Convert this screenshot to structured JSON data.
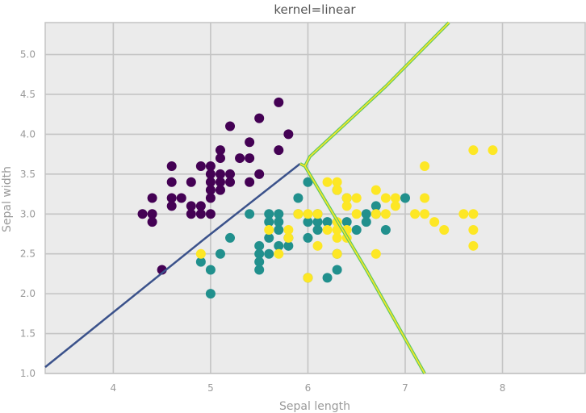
{
  "chart_data": {
    "type": "scatter",
    "title": "kernel=linear",
    "xlabel": "Sepal length",
    "ylabel": "Sepal width",
    "xlim": [
      3.3,
      8.85
    ],
    "ylim": [
      1.0,
      5.4
    ],
    "xticks": [
      4,
      5,
      6,
      7,
      8
    ],
    "yticks": [
      1.0,
      1.5,
      2.0,
      2.5,
      3.0,
      3.5,
      4.0,
      4.5,
      5.0
    ],
    "grid": true,
    "colors": {
      "background": "#ebebeb",
      "grid": "#c4c4c4",
      "class0": "#440154",
      "class1": "#21908d",
      "class2": "#fde725",
      "boundary01": "#3b528b",
      "boundary_outer": "#5ec962",
      "boundary_inner": "#fde725"
    },
    "series": [
      {
        "points": [
          [
            4.3,
            3.0
          ],
          [
            4.4,
            3.0
          ],
          [
            4.4,
            3.2
          ],
          [
            4.4,
            2.9
          ],
          [
            4.5,
            2.3
          ],
          [
            4.6,
            3.6
          ],
          [
            4.6,
            3.4
          ],
          [
            4.6,
            3.2
          ],
          [
            4.6,
            3.1
          ],
          [
            4.7,
            3.2
          ],
          [
            4.8,
            3.4
          ],
          [
            4.8,
            3.1
          ],
          [
            4.8,
            3.0
          ],
          [
            4.9,
            3.1
          ],
          [
            4.9,
            3.0
          ],
          [
            4.9,
            3.6
          ],
          [
            5.0,
            3.6
          ],
          [
            5.0,
            3.5
          ],
          [
            5.0,
            3.4
          ],
          [
            5.0,
            3.3
          ],
          [
            5.0,
            3.2
          ],
          [
            5.0,
            3.0
          ],
          [
            5.1,
            3.8
          ],
          [
            5.1,
            3.7
          ],
          [
            5.1,
            3.5
          ],
          [
            5.1,
            3.4
          ],
          [
            5.1,
            3.3
          ],
          [
            5.2,
            4.1
          ],
          [
            5.2,
            3.5
          ],
          [
            5.2,
            3.4
          ],
          [
            5.3,
            3.7
          ],
          [
            5.4,
            3.9
          ],
          [
            5.4,
            3.7
          ],
          [
            5.4,
            3.4
          ],
          [
            5.5,
            4.2
          ],
          [
            5.5,
            3.5
          ],
          [
            5.7,
            4.4
          ],
          [
            5.7,
            3.8
          ],
          [
            5.8,
            4.0
          ]
        ]
      },
      {
        "points": [
          [
            4.9,
            2.4
          ],
          [
            5.0,
            2.3
          ],
          [
            5.0,
            2.0
          ],
          [
            5.1,
            2.5
          ],
          [
            5.2,
            2.7
          ],
          [
            5.4,
            3.0
          ],
          [
            5.5,
            2.6
          ],
          [
            5.5,
            2.5
          ],
          [
            5.5,
            2.4
          ],
          [
            5.5,
            2.3
          ],
          [
            5.6,
            3.0
          ],
          [
            5.6,
            2.9
          ],
          [
            5.6,
            2.7
          ],
          [
            5.6,
            2.5
          ],
          [
            5.7,
            3.0
          ],
          [
            5.7,
            2.9
          ],
          [
            5.7,
            2.8
          ],
          [
            5.7,
            2.6
          ],
          [
            5.8,
            2.7
          ],
          [
            5.8,
            2.6
          ],
          [
            5.9,
            3.2
          ],
          [
            5.9,
            3.0
          ],
          [
            6.0,
            3.4
          ],
          [
            6.0,
            2.9
          ],
          [
            6.0,
            2.7
          ],
          [
            6.0,
            2.2
          ],
          [
            6.1,
            3.0
          ],
          [
            6.1,
            2.9
          ],
          [
            6.1,
            2.8
          ],
          [
            6.2,
            2.9
          ],
          [
            6.2,
            2.2
          ],
          [
            6.3,
            3.3
          ],
          [
            6.3,
            2.5
          ],
          [
            6.3,
            2.3
          ],
          [
            6.4,
            3.2
          ],
          [
            6.4,
            2.9
          ],
          [
            6.5,
            2.8
          ],
          [
            6.6,
            3.0
          ],
          [
            6.6,
            2.9
          ],
          [
            6.7,
            3.1
          ],
          [
            6.7,
            3.0
          ],
          [
            6.8,
            2.8
          ],
          [
            7.0,
            3.2
          ]
        ]
      },
      {
        "points": [
          [
            4.9,
            2.5
          ],
          [
            5.6,
            2.8
          ],
          [
            5.7,
            2.5
          ],
          [
            5.8,
            2.8
          ],
          [
            5.8,
            2.7
          ],
          [
            5.9,
            3.0
          ],
          [
            6.0,
            3.0
          ],
          [
            6.0,
            2.2
          ],
          [
            6.1,
            3.0
          ],
          [
            6.1,
            2.6
          ],
          [
            6.2,
            3.4
          ],
          [
            6.2,
            2.8
          ],
          [
            6.3,
            3.4
          ],
          [
            6.3,
            3.3
          ],
          [
            6.3,
            2.9
          ],
          [
            6.3,
            2.8
          ],
          [
            6.3,
            2.7
          ],
          [
            6.3,
            2.5
          ],
          [
            6.4,
            3.2
          ],
          [
            6.4,
            3.1
          ],
          [
            6.4,
            2.8
          ],
          [
            6.4,
            2.7
          ],
          [
            6.5,
            3.2
          ],
          [
            6.5,
            3.0
          ],
          [
            6.7,
            3.3
          ],
          [
            6.7,
            3.0
          ],
          [
            6.7,
            2.5
          ],
          [
            6.8,
            3.2
          ],
          [
            6.8,
            3.0
          ],
          [
            6.9,
            3.2
          ],
          [
            6.9,
            3.1
          ],
          [
            7.1,
            3.0
          ],
          [
            7.2,
            3.6
          ],
          [
            7.2,
            3.2
          ],
          [
            7.2,
            3.0
          ],
          [
            7.3,
            2.9
          ],
          [
            7.4,
            2.8
          ],
          [
            7.6,
            3.0
          ],
          [
            7.7,
            3.8
          ],
          [
            7.7,
            3.0
          ],
          [
            7.7,
            2.8
          ],
          [
            7.7,
            2.6
          ],
          [
            7.9,
            3.8
          ]
        ]
      }
    ],
    "decision_boundaries": [
      {
        "between": [
          "class0",
          "class1"
        ],
        "points": [
          [
            3.3,
            1.08
          ],
          [
            4.95,
            2.7
          ],
          [
            5.92,
            3.63
          ]
        ]
      },
      {
        "between": [
          "class0",
          "class1/class2"
        ],
        "points": [
          [
            5.92,
            3.63
          ],
          [
            5.97,
            3.6
          ],
          [
            6.02,
            3.72
          ],
          [
            6.8,
            4.6
          ],
          [
            7.45,
            5.4
          ]
        ]
      },
      {
        "between": [
          "class1",
          "class2"
        ],
        "points": [
          [
            5.97,
            3.6
          ],
          [
            6.6,
            2.3
          ],
          [
            7.2,
            1.0
          ]
        ]
      }
    ]
  }
}
